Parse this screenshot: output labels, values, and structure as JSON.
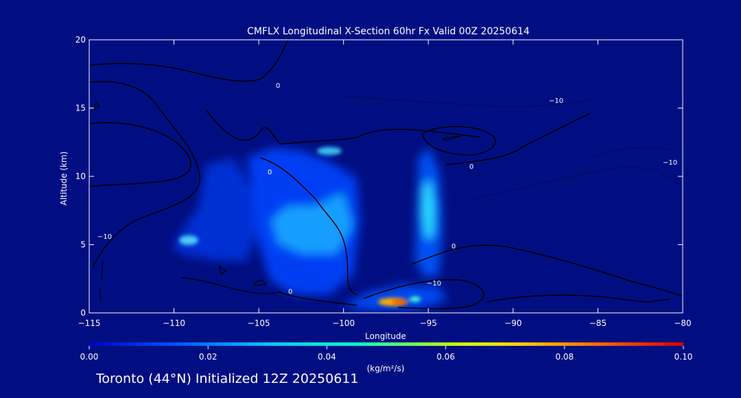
{
  "chart_data": {
    "type": "heatmap",
    "title": "CMFLX Longitudinal X-Section 60hr  Fx Valid 00Z 20250614",
    "xlabel": "Longitude",
    "ylabel": "Altitude (km)",
    "xlim": [
      -115,
      -80
    ],
    "ylim": [
      0,
      20
    ],
    "x_ticks": [
      -115,
      -110,
      -105,
      -100,
      -95,
      -90,
      -85,
      -80
    ],
    "x_tick_labels": [
      "−115",
      "−110",
      "−105",
      "−100",
      "−95",
      "−90",
      "−85",
      "−80"
    ],
    "y_ticks": [
      0,
      5,
      10,
      15,
      20
    ],
    "y_tick_labels": [
      "0",
      "5",
      "10",
      "15",
      "20"
    ],
    "background_color": "#000e82",
    "colorbar": {
      "label": "(kg/m²/s)",
      "min": 0.0,
      "max": 0.1,
      "ticks": [
        0.0,
        0.02,
        0.04,
        0.06,
        0.08,
        0.1
      ],
      "tick_labels": [
        "0.00",
        "0.02",
        "0.04",
        "0.06",
        "0.08",
        "0.10"
      ],
      "colors": [
        "#0000c8",
        "#0050ff",
        "#00c8ff",
        "#00ffc8",
        "#c8ff00",
        "#ffd200",
        "#ff6400",
        "#d20000"
      ]
    },
    "flux_cells": [
      {
        "lon": -108.5,
        "alt": 5.0,
        "value": 0.025
      },
      {
        "lon": -106.5,
        "alt": 5.8,
        "value": 0.018
      },
      {
        "lon": -104.5,
        "alt": 3.5,
        "value": 0.012
      },
      {
        "lon": -103.0,
        "alt": 6.5,
        "value": 0.028
      },
      {
        "lon": -100.5,
        "alt": 6.5,
        "value": 0.033
      },
      {
        "lon": -100.5,
        "alt": 12.0,
        "value": 0.022
      },
      {
        "lon": -95.0,
        "alt": 8.0,
        "value": 0.032
      },
      {
        "lon": -95.0,
        "alt": 3.0,
        "value": 0.015
      },
      {
        "lon": -97.0,
        "alt": 0.7,
        "value": 0.075
      },
      {
        "lon": -96.2,
        "alt": 0.8,
        "value": 0.06
      }
    ],
    "contour_labels": [
      "0",
      "−10",
      "0",
      "0",
      "−10",
      "−10",
      "0",
      "0",
      "−10"
    ],
    "footer": "Toronto (44°N) Initialized 12Z 20250611"
  }
}
